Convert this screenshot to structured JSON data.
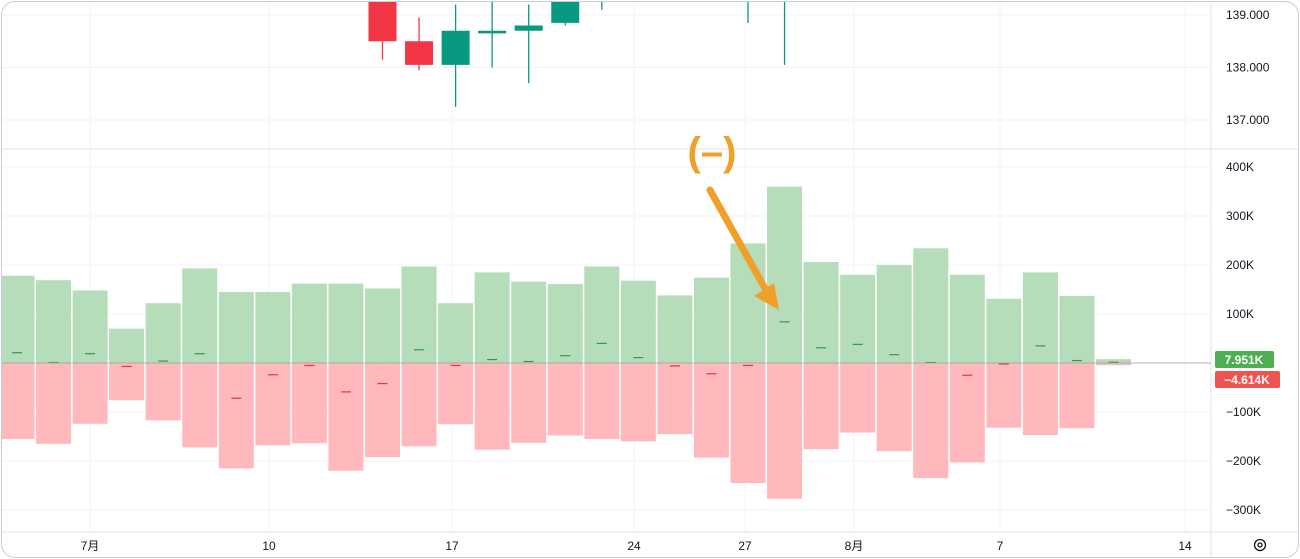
{
  "chart_data": [
    {
      "type": "candlestick",
      "y_ticks": [
        "139.000",
        "138.000",
        "137.000"
      ],
      "ylim": [
        136.4,
        139.2
      ],
      "candles": [
        {
          "x": 10,
          "open": 139.4,
          "close": 138.5,
          "high": 139.5,
          "low": 138.15
        },
        {
          "x": 11,
          "open": 138.5,
          "close": 138.05,
          "high": 138.95,
          "low": 137.95
        },
        {
          "x": 12,
          "open": 138.05,
          "close": 138.7,
          "high": 139.2,
          "low": 137.25
        },
        {
          "x": 13,
          "open": 138.65,
          "close": 138.7,
          "high": 139.3,
          "low": 138.0
        },
        {
          "x": 14,
          "open": 138.7,
          "close": 138.8,
          "high": 139.2,
          "low": 137.7
        },
        {
          "x": 15,
          "open": 138.85,
          "close": 139.4,
          "high": 139.5,
          "low": 138.8
        },
        {
          "x": 16,
          "open": 139.3,
          "close": 139.3,
          "high": 139.5,
          "low": 139.1
        },
        {
          "x": 20,
          "open": 139.4,
          "close": 139.4,
          "high": 139.5,
          "low": 138.85
        },
        {
          "x": 21,
          "open": 139.4,
          "close": 139.4,
          "high": 139.5,
          "low": 138.05
        }
      ],
      "bull_color": "#089981",
      "bear_color": "#f23645"
    },
    {
      "type": "bar",
      "y_ticks": [
        "400K",
        "300K",
        "200K",
        "100K",
        "−100K",
        "−200K",
        "−300K"
      ],
      "ylim": [
        -330000,
        420000
      ],
      "x_ticks": [
        {
          "x": 2,
          "label": "7月"
        },
        {
          "x": 7,
          "label": "10"
        },
        {
          "x": 12,
          "label": "17"
        },
        {
          "x": 17,
          "label": "24"
        },
        {
          "x": 20,
          "label": "27"
        },
        {
          "x": 23,
          "label": "8月"
        },
        {
          "x": 27,
          "label": "7"
        },
        {
          "x": 32,
          "label": "14"
        }
      ],
      "x": [
        0,
        1,
        2,
        3,
        4,
        5,
        6,
        7,
        8,
        9,
        10,
        11,
        12,
        13,
        14,
        15,
        16,
        17,
        18,
        19,
        20,
        21,
        22,
        23,
        24,
        25,
        26,
        27,
        28,
        29
      ],
      "series": [
        {
          "values": [
            178000,
            169000,
            148000,
            70000,
            122000,
            193000,
            145000,
            145000,
            162000,
            162000,
            152000,
            197000,
            122000,
            185000,
            166000,
            161000,
            197000,
            168000,
            138000,
            174000,
            244000,
            360000,
            206000,
            180000,
            200000,
            234000,
            180000,
            131000,
            185000,
            137000
          ]
        },
        {
          "values": [
            -155000,
            -165000,
            -124000,
            -76000,
            -117000,
            -172000,
            -215000,
            -168000,
            -164000,
            -220000,
            -192000,
            -170000,
            -125000,
            -177000,
            -163000,
            -148000,
            -155000,
            -160000,
            -145000,
            -193000,
            -245000,
            -277000,
            -176000,
            -142000,
            -180000,
            -235000,
            -203000,
            -132000,
            -147000,
            -133000
          ]
        },
        {
          "values": [
            21000,
            1000,
            19000,
            -7000,
            4000,
            19000,
            -72000,
            -24000,
            -5000,
            -59000,
            -42000,
            27000,
            -5000,
            7000,
            3000,
            15000,
            40000,
            11000,
            -6000,
            -22000,
            -5000,
            84000,
            31000,
            38000,
            17000,
            1000,
            -25000,
            -2000,
            35000,
            5000
          ]
        }
      ],
      "last": {
        "x": 30,
        "positive": 7951,
        "negative": -4614
      },
      "badges": {
        "positive": "7.951K",
        "negative": "−4.614K"
      },
      "colors": {
        "positive": "#b5ddb9",
        "negative": "#ffb8bb",
        "positive_badge": "#4caf50",
        "negative_badge": "#f05350"
      }
    }
  ],
  "annotation": {
    "text": "(–)",
    "color": "#f0a028"
  },
  "settings_icon": "settings-gear-icon"
}
